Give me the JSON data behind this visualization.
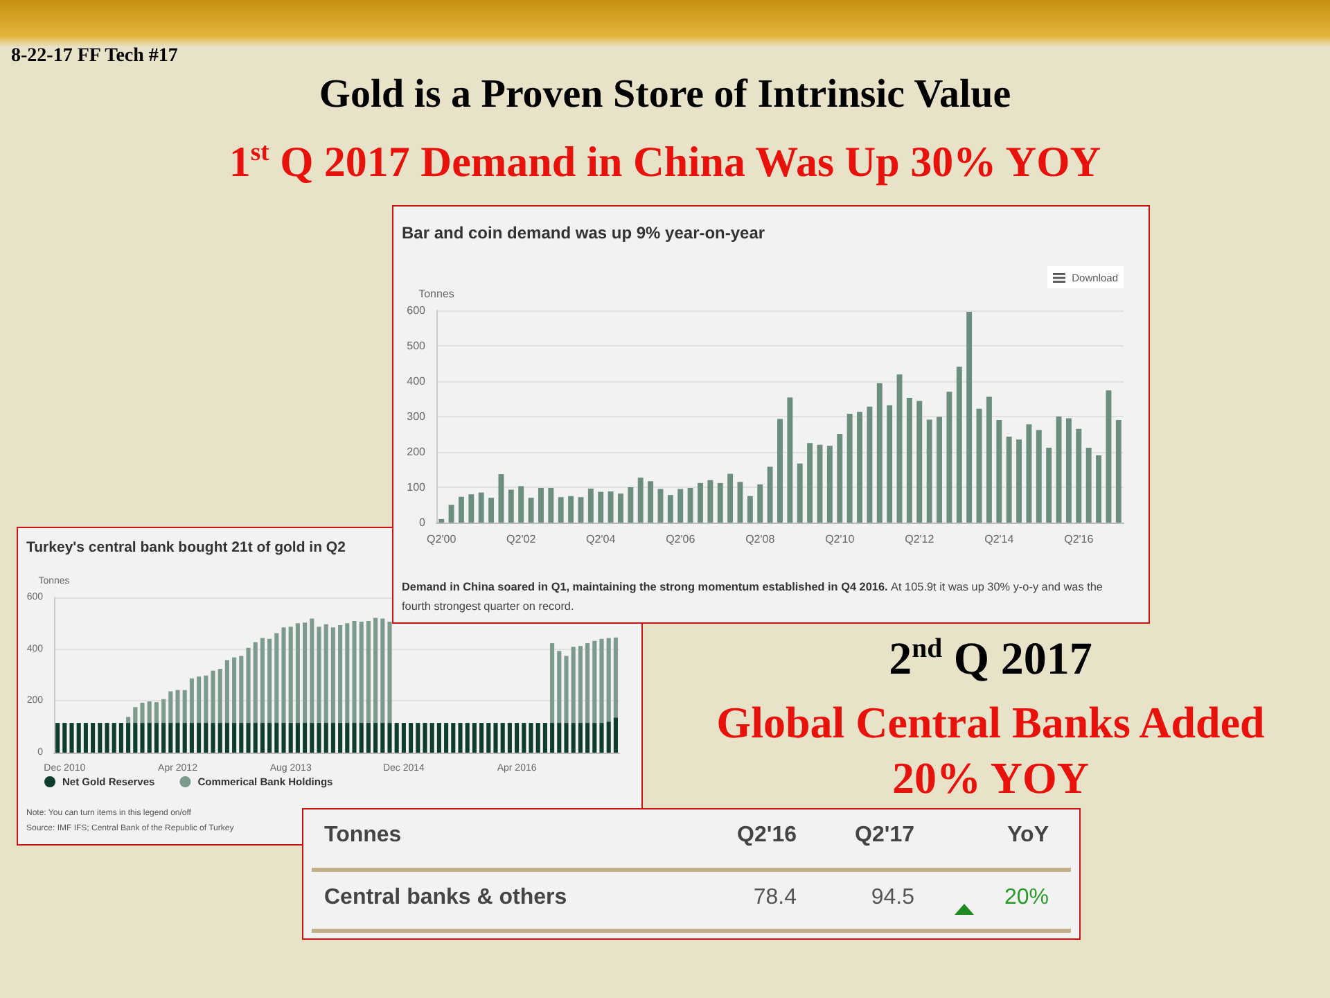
{
  "chart_data": [
    {
      "type": "other",
      "title": "Gold is a Proven Store of Intrinsic Value",
      "subtitle": "1$^{st}$ Q 2017 Demand in China Was Up 30% YOY",
      "annotations": [
        "8-22-17 FF Tech #17"
      ]
    },
    {
      "type": "bar",
      "title": "Bar and coin demand was up 9% year-on-year",
      "ylabel": "Tonnes",
      "color": "#6b8e7f",
      "categories": [
        "Q2'00",
        null,
        null,
        null,
        null,
        null,
        null,
        null,
        "Q2'02",
        null,
        null,
        null,
        null,
        null,
        null,
        null,
        "Q2'04",
        null,
        null,
        null,
        null,
        null,
        null,
        null,
        "Q2'06",
        null,
        null,
        null,
        null,
        null,
        null,
        null,
        "Q2'08",
        null,
        null,
        null,
        null,
        null,
        null,
        null,
        "Q2'10",
        null,
        null,
        null,
        null,
        null,
        null,
        null,
        "Q2'12",
        null,
        null,
        null,
        null,
        null,
        null,
        null,
        "Q2'14",
        null,
        null,
        null,
        null,
        null,
        null,
        null,
        "Q2'16",
        null,
        null,
        null,
        null
      ],
      "values": [
        10,
        50,
        73,
        80,
        85,
        70,
        137,
        93,
        103,
        70,
        98,
        98,
        72,
        75,
        72,
        96,
        87,
        88,
        82,
        100,
        127,
        117,
        95,
        78,
        95,
        98,
        112,
        120,
        112,
        138,
        115,
        75,
        108,
        158,
        293,
        354,
        167,
        225,
        220,
        217,
        251,
        308,
        313,
        328,
        394,
        332,
        419,
        353,
        344,
        291,
        299,
        370,
        441,
        596,
        322,
        356,
        290,
        243,
        235,
        278,
        262,
        212,
        300,
        295,
        265,
        212,
        190,
        374,
        290
      ],
      "ylim": [
        0,
        600
      ],
      "yticks": [
        0,
        100,
        200,
        300,
        400,
        500,
        600
      ],
      "grid": "y",
      "annotations": [
        "Download",
        "Demand in China soared in Q1, maintaining the strong momentum established in Q4 2016.",
        "At 105.9t it was up 30% y-o-y and was the fourth strongest quarter on record."
      ]
    },
    {
      "type": "bar",
      "title": "Turkey's central bank bought 21t of gold in Q2",
      "ylabel": "Tonnes",
      "stacked": true,
      "legend": "bottom",
      "categories": [
        null,
        "Dec 2010",
        null,
        null,
        null,
        null,
        null,
        null,
        null,
        null,
        null,
        null,
        null,
        null,
        null,
        null,
        null,
        "Apr 2012",
        null,
        null,
        null,
        null,
        null,
        null,
        null,
        null,
        null,
        null,
        null,
        null,
        null,
        null,
        null,
        "Aug 2013",
        null,
        null,
        null,
        null,
        null,
        null,
        null,
        null,
        null,
        null,
        null,
        null,
        null,
        null,
        null,
        "Dec 2014",
        null,
        null,
        null,
        null,
        null,
        null,
        null,
        null,
        null,
        null,
        null,
        null,
        null,
        null,
        null,
        "Apr 2016",
        null,
        null,
        null,
        null,
        null,
        null,
        null,
        null,
        null,
        null,
        null,
        null,
        null,
        null
      ],
      "series": [
        {
          "name": "Net Gold Reserves",
          "color": "#0f3d2b",
          "values": [
            115,
            115,
            115,
            115,
            115,
            115,
            115,
            115,
            115,
            115,
            115,
            115,
            115,
            115,
            115,
            115,
            115,
            115,
            115,
            115,
            115,
            115,
            115,
            115,
            115,
            115,
            115,
            115,
            115,
            115,
            115,
            115,
            115,
            115,
            115,
            115,
            115,
            115,
            115,
            115,
            115,
            115,
            115,
            115,
            115,
            115,
            115,
            115,
            115,
            115,
            115,
            115,
            115,
            115,
            115,
            115,
            115,
            115,
            115,
            115,
            115,
            115,
            115,
            115,
            115,
            115,
            115,
            115,
            115,
            115,
            115,
            115,
            115,
            115,
            115,
            115,
            115,
            115,
            120,
            136
          ]
        },
        {
          "name": "Commerical Bank Holdings",
          "color": "#7d9b8c",
          "values": [
            0,
            0,
            0,
            0,
            0,
            0,
            0,
            0,
            0,
            0,
            23,
            61,
            78,
            83,
            80,
            92,
            122,
            127,
            127,
            172,
            179,
            183,
            202,
            209,
            243,
            253,
            259,
            290,
            312,
            328,
            325,
            347,
            369,
            372,
            385,
            388,
            403,
            372,
            381,
            369,
            378,
            385,
            394,
            391,
            394,
            406,
            403,
            391,
            null,
            null,
            null,
            null,
            null,
            null,
            null,
            null,
            null,
            null,
            null,
            null,
            null,
            null,
            null,
            null,
            null,
            null,
            null,
            null,
            null,
            null,
            308,
            278,
            259,
            294,
            297,
            308,
            317,
            325,
            323,
            309
          ]
        }
      ],
      "ylim": [
        0,
        600
      ],
      "yticks": [
        0,
        200,
        400,
        600
      ],
      "grid": "y",
      "annotations": [
        "Note: You can turn items in this legend on/off",
        "Source: IMF IFS; Central Bank of the Republic of Turkey"
      ]
    },
    {
      "type": "other",
      "title": "2$^{nd}$ Q 2017",
      "subtitle": "Global Central Banks Added 20% YOY",
      "annotations": [
        "Tonnes",
        "Q2'16",
        "Q2'17",
        "YoY",
        "Central banks & others",
        "78.4",
        "94.5",
        "20%"
      ]
    }
  ]
}
